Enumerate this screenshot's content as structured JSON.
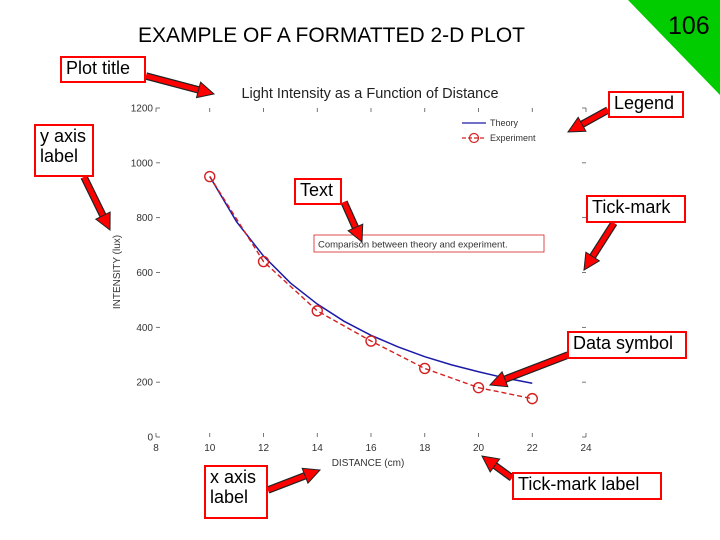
{
  "slide": {
    "title": "EXAMPLE OF A FORMATTED 2-D PLOT",
    "page_number": "106",
    "corner_color": "#00cc00",
    "callout_border_color": "#ff0000",
    "arrow_color": "#ff0000"
  },
  "callouts": [
    {
      "id": "plot-title",
      "text": "Plot title"
    },
    {
      "id": "legend",
      "text": "Legend"
    },
    {
      "id": "y-axis-label",
      "lines": [
        "y axis",
        "label"
      ]
    },
    {
      "id": "text",
      "text": "Text"
    },
    {
      "id": "tick-mark",
      "text": "Tick-mark"
    },
    {
      "id": "data-symbol",
      "text": "Data symbol"
    },
    {
      "id": "x-axis-label",
      "lines": [
        "x axis",
        "label"
      ]
    },
    {
      "id": "tick-mark-label",
      "text": "Tick-mark label"
    }
  ],
  "chart_data": {
    "type": "line",
    "title": "Light Intensity as a Function of Distance",
    "xlabel": "DISTANCE (cm)",
    "ylabel": "INTENSITY (lux)",
    "xlim": [
      8,
      24
    ],
    "ylim": [
      0,
      1200
    ],
    "xticks": [
      8,
      10,
      12,
      14,
      16,
      18,
      20,
      22,
      24
    ],
    "yticks": [
      0,
      200,
      400,
      600,
      800,
      1000,
      1200
    ],
    "annotation": "Comparison between theory and experiment.",
    "legend_position": "top-right",
    "grid": false,
    "series": [
      {
        "name": "Theory",
        "style": "solid",
        "color": "#1a1aa8",
        "x": [
          10,
          11,
          12,
          13,
          14,
          15,
          16,
          17,
          18,
          19,
          20,
          21,
          22
        ],
        "y": [
          950,
          785,
          660,
          562,
          485,
          422,
          371,
          329,
          293,
          263,
          238,
          215,
          196
        ]
      },
      {
        "name": "Experiment",
        "style": "dashed",
        "marker": "circle",
        "color": "#d42020",
        "x": [
          10,
          12,
          14,
          16,
          18,
          20,
          22
        ],
        "y": [
          950,
          640,
          460,
          350,
          250,
          180,
          140
        ]
      }
    ]
  }
}
